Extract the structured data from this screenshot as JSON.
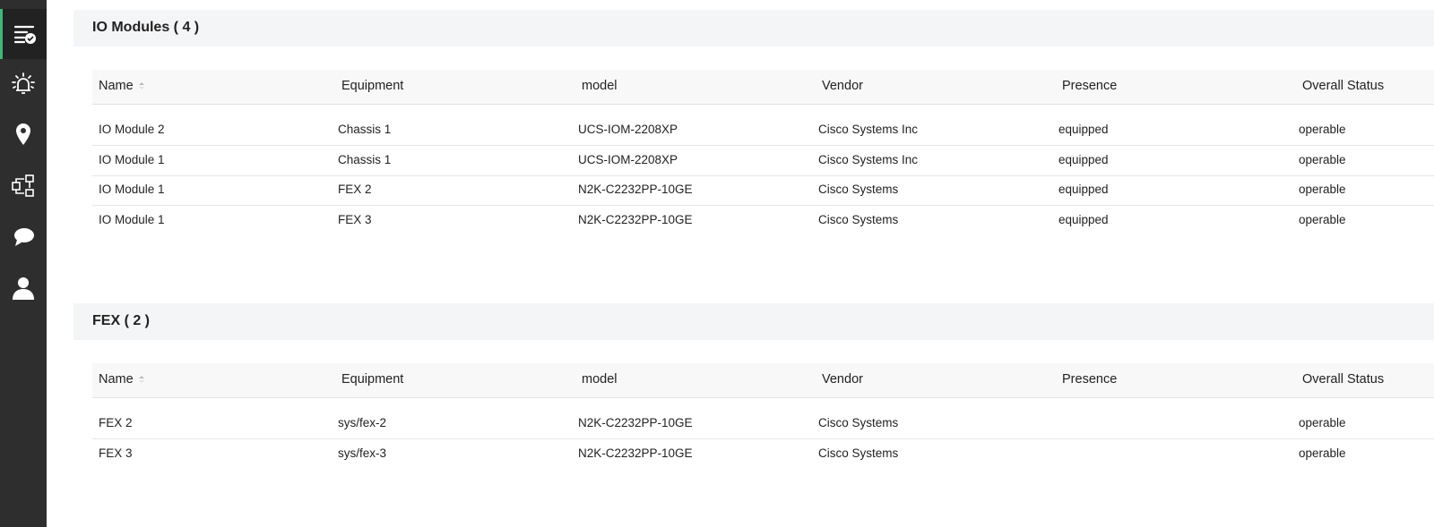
{
  "sidebar": {
    "accent_color": "#3cb878",
    "items": [
      {
        "icon": "list-check-icon",
        "active": true
      },
      {
        "icon": "alarm-bell-icon",
        "active": false
      },
      {
        "icon": "map-pin-icon",
        "active": false
      },
      {
        "icon": "workflow-icon",
        "active": false
      },
      {
        "icon": "chat-bubbles-icon",
        "active": false
      },
      {
        "icon": "user-icon",
        "active": false
      }
    ]
  },
  "io_modules": {
    "title": "IO Modules ( 4 )",
    "columns": [
      "Name",
      "Equipment",
      "model",
      "Vendor",
      "Presence",
      "Overall Status"
    ],
    "rows": [
      [
        "IO Module 2",
        "Chassis 1",
        "UCS-IOM-2208XP",
        "Cisco Systems Inc",
        "equipped",
        "operable"
      ],
      [
        "IO Module 1",
        "Chassis 1",
        "UCS-IOM-2208XP",
        "Cisco Systems Inc",
        "equipped",
        "operable"
      ],
      [
        "IO Module 1",
        "FEX 2",
        "N2K-C2232PP-10GE",
        "Cisco Systems",
        "equipped",
        "operable"
      ],
      [
        "IO Module 1",
        "FEX 3",
        "N2K-C2232PP-10GE",
        "Cisco Systems",
        "equipped",
        "operable"
      ]
    ]
  },
  "fex": {
    "title": "FEX ( 2 )",
    "columns": [
      "Name",
      "Equipment",
      "model",
      "Vendor",
      "Presence",
      "Overall Status"
    ],
    "rows": [
      [
        "FEX 2",
        "sys/fex-2",
        "N2K-C2232PP-10GE",
        "Cisco Systems",
        "",
        "operable"
      ],
      [
        "FEX 3",
        "sys/fex-3",
        "N2K-C2232PP-10GE",
        "Cisco Systems",
        "",
        "operable"
      ]
    ]
  }
}
